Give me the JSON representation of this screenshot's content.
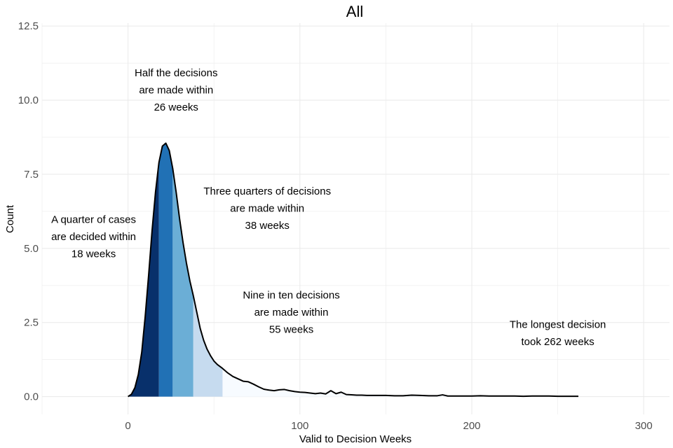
{
  "chart_data": {
    "type": "area",
    "title": "All",
    "xlabel": "Valid to Decision Weeks",
    "ylabel": "Count",
    "xlim": [
      -50,
      315
    ],
    "ylim": [
      -0.6,
      12.6
    ],
    "x_ticks": [
      0,
      100,
      200,
      300
    ],
    "y_ticks": [
      0.0,
      2.5,
      5.0,
      7.5,
      10.0,
      12.5
    ],
    "x_tick_labels": [
      "0",
      "100",
      "200",
      "300"
    ],
    "y_tick_labels": [
      "0.0",
      "2.5",
      "5.0",
      "7.5",
      "10.0",
      "12.5"
    ],
    "grid": true,
    "density": {
      "x": [
        0,
        2,
        4,
        6,
        8,
        10,
        12,
        14,
        16,
        18,
        20,
        22,
        24,
        26,
        28,
        30,
        32,
        34,
        36,
        38,
        40,
        42,
        44,
        46,
        48,
        50,
        52,
        55,
        58,
        61,
        64,
        67,
        70,
        73,
        76,
        79,
        82,
        85,
        88,
        91,
        94,
        97,
        100,
        103,
        106,
        109,
        112,
        115,
        118,
        121,
        124,
        127,
        130,
        133,
        136,
        139,
        142,
        145,
        150,
        155,
        160,
        165,
        170,
        175,
        180,
        183,
        186,
        190,
        195,
        200,
        205,
        210,
        215,
        220,
        225,
        230,
        235,
        240,
        245,
        250,
        255,
        262
      ],
      "y": [
        0.0,
        0.08,
        0.3,
        0.75,
        1.5,
        2.7,
        4.1,
        5.6,
        6.9,
        7.9,
        8.45,
        8.55,
        8.3,
        7.7,
        6.9,
        6.0,
        5.2,
        4.5,
        3.9,
        3.4,
        2.85,
        2.3,
        1.9,
        1.6,
        1.38,
        1.2,
        1.08,
        0.95,
        0.8,
        0.68,
        0.6,
        0.52,
        0.5,
        0.42,
        0.33,
        0.25,
        0.22,
        0.2,
        0.23,
        0.24,
        0.2,
        0.17,
        0.15,
        0.14,
        0.12,
        0.1,
        0.12,
        0.09,
        0.2,
        0.1,
        0.15,
        0.07,
        0.06,
        0.05,
        0.05,
        0.04,
        0.04,
        0.04,
        0.04,
        0.03,
        0.03,
        0.05,
        0.04,
        0.03,
        0.03,
        0.06,
        0.02,
        0.02,
        0.02,
        0.02,
        0.03,
        0.02,
        0.02,
        0.02,
        0.02,
        0.01,
        0.02,
        0.02,
        0.02,
        0.01,
        0.01,
        0.01
      ]
    },
    "quantile_bands": [
      {
        "from": 0,
        "to": 18,
        "color": "#08306b"
      },
      {
        "from": 18,
        "to": 26,
        "color": "#2171b5"
      },
      {
        "from": 26,
        "to": 38,
        "color": "#6baed6"
      },
      {
        "from": 38,
        "to": 55,
        "color": "#c6dbef"
      },
      {
        "from": 55,
        "to": 262,
        "color": "#f7fbff"
      }
    ],
    "outline_color": "#000000",
    "grid_color": "#ebebeb",
    "annotations": [
      {
        "x": 28,
        "y": 10.35,
        "lines": [
          "Half the decisions",
          "are made within",
          "26 weeks"
        ]
      },
      {
        "x": 81,
        "y": 6.35,
        "lines": [
          "Three quarters of decisions",
          "are made within",
          "38 weeks"
        ]
      },
      {
        "x": -20,
        "y": 5.4,
        "lines": [
          "A quarter of cases",
          "are decided within",
          "18 weeks"
        ]
      },
      {
        "x": 95,
        "y": 2.85,
        "lines": [
          "Nine in ten decisions",
          "are made within",
          "55 weeks"
        ]
      },
      {
        "x": 250,
        "y": 2.15,
        "lines": [
          "The longest decision",
          "took 262 weeks"
        ]
      }
    ]
  }
}
